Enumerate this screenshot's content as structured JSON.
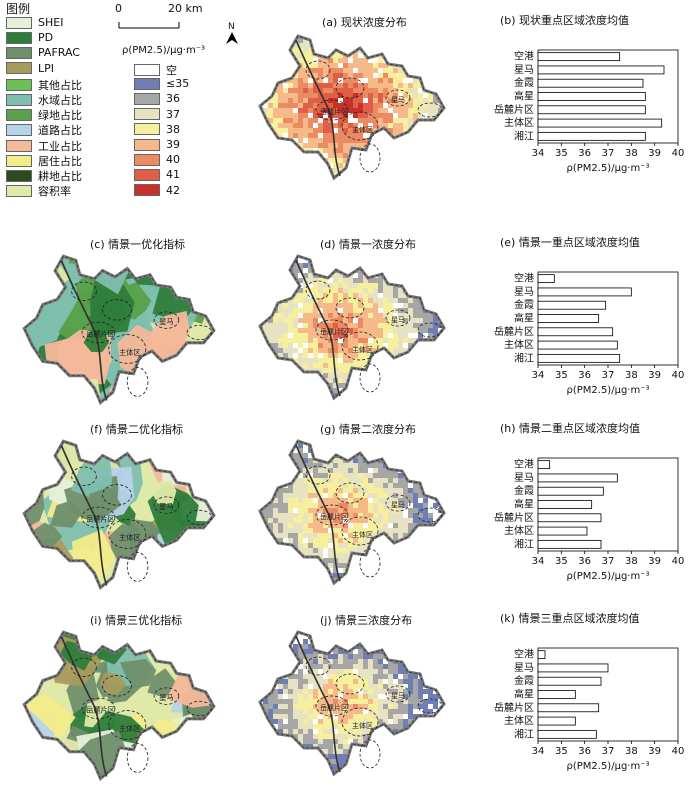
{
  "legend": {
    "title": "图例",
    "indicators": [
      {
        "label": "SHEI",
        "color": "#e6f0d8"
      },
      {
        "label": "PD",
        "color": "#2f7d3b"
      },
      {
        "label": "PAFRAC",
        "color": "#6f8f6b"
      },
      {
        "label": "LPI",
        "color": "#a79a5d"
      },
      {
        "label": "其他占比",
        "color": "#6fbf58"
      },
      {
        "label": "水域占比",
        "color": "#7fbfae"
      },
      {
        "label": "绿地占比",
        "color": "#5aa04a"
      },
      {
        "label": "道路占比",
        "color": "#b7d3ea"
      },
      {
        "label": "工业占比",
        "color": "#f4b89a"
      },
      {
        "label": "居住占比",
        "color": "#f2ec8a"
      },
      {
        "label": "耕地占比",
        "color": "#2d4a22"
      },
      {
        "label": "容积率",
        "color": "#dfe9a8"
      }
    ],
    "scale_start": "0",
    "scale_end": "20 km",
    "pm_title": "ρ(PM2.5)/μg·m⁻³",
    "pm_classes": [
      {
        "label": "空",
        "color": "#ffffff"
      },
      {
        "label": "≤35",
        "color": "#6f7fb5"
      },
      {
        "label": "36",
        "color": "#a6a6a6"
      },
      {
        "label": "37",
        "color": "#e7e3c2"
      },
      {
        "label": "38",
        "color": "#f6ef9e"
      },
      {
        "label": "39",
        "color": "#f6b98a"
      },
      {
        "label": "40",
        "color": "#ec8a62"
      },
      {
        "label": "41",
        "color": "#de5f45"
      },
      {
        "label": "42",
        "color": "#c8312a"
      }
    ]
  },
  "north": "N",
  "map_labels": {
    "yuelu": "岳麓片区",
    "zhuti": "主体区",
    "xingma": "星马"
  },
  "panels": {
    "a": "(a) 现状浓度分布",
    "c": "(c) 情景一优化指标",
    "d": "(d) 情景一浓度分布",
    "f": "(f) 情景二优化指标",
    "g": "(g) 情景二浓度分布",
    "i": "(i) 情景三优化指标",
    "j": "(j) 情景三浓度分布"
  },
  "chart_data": [
    {
      "type": "bar",
      "title": "(b) 现状重点区域浓度均值",
      "categories": [
        "空港",
        "星马",
        "金霞",
        "高星",
        "岳麓片区",
        "主体区",
        "湘江"
      ],
      "values": [
        37.5,
        39.4,
        38.5,
        38.6,
        38.6,
        39.3,
        38.6
      ],
      "xlabel": "ρ(PM2.5)/μg·m⁻³",
      "xlim": [
        34,
        40
      ],
      "ticks": [
        34,
        35,
        36,
        37,
        38,
        39,
        40
      ]
    },
    {
      "type": "bar",
      "title": "(e) 情景一重点区域浓度均值",
      "categories": [
        "空港",
        "星马",
        "金霞",
        "高星",
        "岳麓片区",
        "主体区",
        "湘江"
      ],
      "values": [
        34.7,
        38.0,
        36.9,
        36.6,
        37.2,
        37.4,
        37.5
      ],
      "xlabel": "ρ(PM2.5)/μg·m⁻³",
      "xlim": [
        34,
        40
      ],
      "ticks": [
        34,
        35,
        36,
        37,
        38,
        39,
        40
      ]
    },
    {
      "type": "bar",
      "title": "(h) 情景二重点区域浓度均值",
      "categories": [
        "空港",
        "星马",
        "金霞",
        "高星",
        "岳麓片区",
        "主体区",
        "湘江"
      ],
      "values": [
        34.5,
        37.4,
        36.8,
        36.3,
        36.7,
        36.1,
        36.7
      ],
      "xlabel": "ρ(PM2.5)/μg·m⁻³",
      "xlim": [
        34,
        40
      ],
      "ticks": [
        34,
        35,
        36,
        37,
        38,
        39,
        40
      ]
    },
    {
      "type": "bar",
      "title": "(k) 情景三重点区域浓度均值",
      "categories": [
        "空港",
        "星马",
        "金霞",
        "高星",
        "岳麓片区",
        "主体区",
        "湘江"
      ],
      "values": [
        34.3,
        37.0,
        36.7,
        35.6,
        36.6,
        35.6,
        36.5
      ],
      "xlabel": "ρ(PM2.5)/μg·m⁻³",
      "xlim": [
        34,
        40
      ],
      "ticks": [
        34,
        35,
        36,
        37,
        38,
        39,
        40
      ]
    }
  ]
}
